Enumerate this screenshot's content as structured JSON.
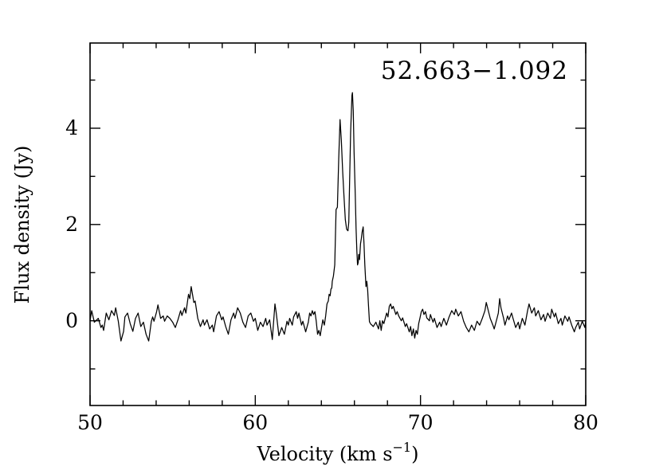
{
  "chart_data": {
    "type": "line",
    "title": "52.663−1.092",
    "xlabel": "Velocity (km s⁻¹)",
    "xlabel_parts": {
      "base": "Velocity (km s",
      "sup": "−1",
      "end": ")"
    },
    "ylabel": "Flux density (Jy)",
    "xlim": [
      50,
      80
    ],
    "ylim": [
      -1.76,
      5.77
    ],
    "xticks_major": [
      50,
      60,
      70,
      80
    ],
    "xtick_labels": [
      "50",
      "60",
      "70",
      "80"
    ],
    "xtick_minor_step": 2,
    "yticks_major": [
      0,
      2,
      4
    ],
    "ytick_labels": [
      "0",
      "2",
      "4"
    ],
    "ytick_minor_step": 1,
    "grid": false,
    "legend": null,
    "line_color": "#000000",
    "frame_color": "#000000",
    "background": "#ffffff",
    "points": [
      [
        50.0,
        0.0
      ],
      [
        50.1,
        0.21
      ],
      [
        50.26,
        -0.03
      ],
      [
        50.5,
        0.05
      ],
      [
        50.66,
        -0.14
      ],
      [
        50.74,
        -0.09
      ],
      [
        50.82,
        -0.2
      ],
      [
        50.98,
        0.16
      ],
      [
        51.14,
        0.02
      ],
      [
        51.3,
        0.21
      ],
      [
        51.47,
        0.11
      ],
      [
        51.55,
        0.27
      ],
      [
        51.71,
        -0.01
      ],
      [
        51.87,
        -0.42
      ],
      [
        52.03,
        -0.22
      ],
      [
        52.11,
        0.08
      ],
      [
        52.27,
        0.16
      ],
      [
        52.43,
        -0.06
      ],
      [
        52.59,
        -0.22
      ],
      [
        52.75,
        0.05
      ],
      [
        52.91,
        0.16
      ],
      [
        53.07,
        -0.12
      ],
      [
        53.23,
        -0.03
      ],
      [
        53.39,
        -0.28
      ],
      [
        53.55,
        -0.42
      ],
      [
        53.71,
        -0.01
      ],
      [
        53.79,
        0.08
      ],
      [
        53.87,
        -0.01
      ],
      [
        54.03,
        0.19
      ],
      [
        54.11,
        0.33
      ],
      [
        54.27,
        0.05
      ],
      [
        54.43,
        0.1
      ],
      [
        54.51,
        -0.01
      ],
      [
        54.67,
        0.1
      ],
      [
        54.83,
        0.05
      ],
      [
        55.0,
        -0.03
      ],
      [
        55.16,
        -0.14
      ],
      [
        55.32,
        0.02
      ],
      [
        55.48,
        0.21
      ],
      [
        55.56,
        0.11
      ],
      [
        55.72,
        0.27
      ],
      [
        55.8,
        0.16
      ],
      [
        55.96,
        0.55
      ],
      [
        56.04,
        0.46
      ],
      [
        56.12,
        0.71
      ],
      [
        56.2,
        0.55
      ],
      [
        56.28,
        0.38
      ],
      [
        56.36,
        0.41
      ],
      [
        56.52,
        0.05
      ],
      [
        56.68,
        -0.12
      ],
      [
        56.84,
        0.02
      ],
      [
        56.92,
        -0.09
      ],
      [
        57.08,
        0.02
      ],
      [
        57.24,
        -0.17
      ],
      [
        57.4,
        -0.09
      ],
      [
        57.48,
        -0.23
      ],
      [
        57.65,
        0.1
      ],
      [
        57.81,
        0.19
      ],
      [
        57.97,
        0.02
      ],
      [
        58.05,
        0.08
      ],
      [
        58.21,
        -0.12
      ],
      [
        58.37,
        -0.28
      ],
      [
        58.53,
        0.02
      ],
      [
        58.69,
        0.16
      ],
      [
        58.77,
        0.05
      ],
      [
        58.93,
        0.27
      ],
      [
        59.09,
        0.16
      ],
      [
        59.25,
        -0.03
      ],
      [
        59.41,
        -0.14
      ],
      [
        59.57,
        0.1
      ],
      [
        59.73,
        0.16
      ],
      [
        59.89,
        -0.01
      ],
      [
        60.0,
        0.05
      ],
      [
        60.15,
        -0.2
      ],
      [
        60.31,
        -0.03
      ],
      [
        60.47,
        -0.12
      ],
      [
        60.63,
        0.05
      ],
      [
        60.71,
        -0.09
      ],
      [
        60.87,
        0.02
      ],
      [
        61.03,
        -0.39
      ],
      [
        61.19,
        0.35
      ],
      [
        61.27,
        0.16
      ],
      [
        61.43,
        -0.31
      ],
      [
        61.6,
        -0.14
      ],
      [
        61.76,
        -0.28
      ],
      [
        61.92,
        -0.01
      ],
      [
        62.0,
        -0.09
      ],
      [
        62.08,
        0.05
      ],
      [
        62.24,
        -0.09
      ],
      [
        62.32,
        0.08
      ],
      [
        62.48,
        0.19
      ],
      [
        62.56,
        0.05
      ],
      [
        62.64,
        0.16
      ],
      [
        62.8,
        -0.09
      ],
      [
        62.88,
        -0.01
      ],
      [
        63.05,
        -0.23
      ],
      [
        63.21,
        -0.03
      ],
      [
        63.29,
        0.16
      ],
      [
        63.37,
        0.1
      ],
      [
        63.45,
        0.21
      ],
      [
        63.53,
        0.13
      ],
      [
        63.61,
        0.19
      ],
      [
        63.69,
        -0.01
      ],
      [
        63.77,
        -0.28
      ],
      [
        63.85,
        -0.2
      ],
      [
        63.93,
        -0.31
      ],
      [
        64.01,
        -0.14
      ],
      [
        64.09,
        0.02
      ],
      [
        64.18,
        -0.09
      ],
      [
        64.26,
        0.1
      ],
      [
        64.34,
        0.35
      ],
      [
        64.42,
        0.41
      ],
      [
        64.47,
        0.55
      ],
      [
        64.53,
        0.52
      ],
      [
        64.58,
        0.66
      ],
      [
        64.63,
        0.68
      ],
      [
        64.66,
        0.82
      ],
      [
        64.73,
        0.93
      ],
      [
        64.81,
        1.16
      ],
      [
        64.89,
        2.31
      ],
      [
        64.97,
        2.36
      ],
      [
        65.05,
        3.36
      ],
      [
        65.13,
        4.18
      ],
      [
        65.21,
        3.74
      ],
      [
        65.29,
        3.1
      ],
      [
        65.37,
        2.58
      ],
      [
        65.45,
        2.1
      ],
      [
        65.53,
        1.9
      ],
      [
        65.61,
        1.87
      ],
      [
        65.66,
        2.05
      ],
      [
        65.72,
        3.08
      ],
      [
        65.77,
        3.9
      ],
      [
        65.85,
        4.68
      ],
      [
        65.88,
        4.74
      ],
      [
        65.93,
        4.36
      ],
      [
        65.98,
        3.5
      ],
      [
        66.05,
        2.64
      ],
      [
        66.1,
        1.92
      ],
      [
        66.15,
        1.43
      ],
      [
        66.19,
        1.16
      ],
      [
        66.23,
        1.21
      ],
      [
        66.26,
        1.38
      ],
      [
        66.31,
        1.27
      ],
      [
        66.37,
        1.6
      ],
      [
        66.42,
        1.71
      ],
      [
        66.47,
        1.85
      ],
      [
        66.53,
        1.95
      ],
      [
        66.58,
        1.6
      ],
      [
        66.63,
        1.16
      ],
      [
        66.7,
        0.71
      ],
      [
        66.75,
        0.82
      ],
      [
        66.8,
        0.65
      ],
      [
        66.85,
        0.33
      ],
      [
        66.91,
        -0.02
      ],
      [
        66.99,
        -0.07
      ],
      [
        67.06,
        -0.09
      ],
      [
        67.14,
        -0.12
      ],
      [
        67.3,
        -0.03
      ],
      [
        67.46,
        -0.17
      ],
      [
        67.54,
        0.0
      ],
      [
        67.62,
        -0.2
      ],
      [
        67.7,
        0.0
      ],
      [
        67.78,
        -0.06
      ],
      [
        67.95,
        0.16
      ],
      [
        68.03,
        0.08
      ],
      [
        68.11,
        0.3
      ],
      [
        68.19,
        0.35
      ],
      [
        68.27,
        0.25
      ],
      [
        68.35,
        0.3
      ],
      [
        68.51,
        0.13
      ],
      [
        68.59,
        0.19
      ],
      [
        68.68,
        0.1
      ],
      [
        68.84,
        0.0
      ],
      [
        68.92,
        0.06
      ],
      [
        69.08,
        -0.12
      ],
      [
        69.16,
        -0.06
      ],
      [
        69.32,
        -0.23
      ],
      [
        69.4,
        -0.12
      ],
      [
        69.48,
        -0.31
      ],
      [
        69.57,
        -0.17
      ],
      [
        69.65,
        -0.36
      ],
      [
        69.73,
        -0.2
      ],
      [
        69.81,
        -0.28
      ],
      [
        69.89,
        -0.06
      ],
      [
        69.97,
        0.06
      ],
      [
        70.05,
        0.19
      ],
      [
        70.13,
        0.24
      ],
      [
        70.21,
        0.13
      ],
      [
        70.3,
        0.19
      ],
      [
        70.38,
        0.06
      ],
      [
        70.54,
        0.0
      ],
      [
        70.6,
        0.13
      ],
      [
        70.76,
        -0.03
      ],
      [
        70.84,
        0.05
      ],
      [
        71.0,
        -0.14
      ],
      [
        71.16,
        -0.03
      ],
      [
        71.25,
        -0.12
      ],
      [
        71.41,
        0.05
      ],
      [
        71.57,
        -0.09
      ],
      [
        71.73,
        0.08
      ],
      [
        71.89,
        0.21
      ],
      [
        72.05,
        0.13
      ],
      [
        72.13,
        0.24
      ],
      [
        72.29,
        0.1
      ],
      [
        72.45,
        0.19
      ],
      [
        72.61,
        -0.01
      ],
      [
        72.77,
        -0.14
      ],
      [
        72.93,
        -0.23
      ],
      [
        73.09,
        -0.09
      ],
      [
        73.26,
        -0.2
      ],
      [
        73.42,
        -0.01
      ],
      [
        73.58,
        -0.09
      ],
      [
        73.74,
        0.05
      ],
      [
        73.9,
        0.21
      ],
      [
        73.98,
        0.38
      ],
      [
        74.14,
        0.16
      ],
      [
        74.22,
        0.05
      ],
      [
        74.38,
        -0.09
      ],
      [
        74.46,
        -0.17
      ],
      [
        74.63,
        0.05
      ],
      [
        74.71,
        0.16
      ],
      [
        74.79,
        0.46
      ],
      [
        74.87,
        0.27
      ],
      [
        75.03,
        0.05
      ],
      [
        75.11,
        -0.09
      ],
      [
        75.27,
        0.1
      ],
      [
        75.35,
        0.02
      ],
      [
        75.51,
        0.16
      ],
      [
        75.6,
        0.05
      ],
      [
        75.76,
        -0.14
      ],
      [
        75.92,
        -0.03
      ],
      [
        76.0,
        -0.17
      ],
      [
        76.16,
        0.05
      ],
      [
        76.32,
        -0.09
      ],
      [
        76.48,
        0.21
      ],
      [
        76.57,
        0.35
      ],
      [
        76.73,
        0.16
      ],
      [
        76.89,
        0.27
      ],
      [
        76.97,
        0.1
      ],
      [
        77.13,
        0.21
      ],
      [
        77.29,
        0.02
      ],
      [
        77.45,
        0.13
      ],
      [
        77.54,
        -0.01
      ],
      [
        77.7,
        0.16
      ],
      [
        77.86,
        0.05
      ],
      [
        77.94,
        0.24
      ],
      [
        78.1,
        0.08
      ],
      [
        78.18,
        0.16
      ],
      [
        78.34,
        -0.06
      ],
      [
        78.5,
        0.05
      ],
      [
        78.58,
        -0.09
      ],
      [
        78.74,
        0.1
      ],
      [
        78.91,
        -0.01
      ],
      [
        78.99,
        0.08
      ],
      [
        79.15,
        -0.09
      ],
      [
        79.31,
        -0.23
      ],
      [
        79.39,
        -0.14
      ],
      [
        79.55,
        -0.03
      ],
      [
        79.63,
        -0.17
      ],
      [
        79.79,
        -0.01
      ],
      [
        79.95,
        -0.14
      ],
      [
        80.0,
        0.0
      ]
    ]
  }
}
